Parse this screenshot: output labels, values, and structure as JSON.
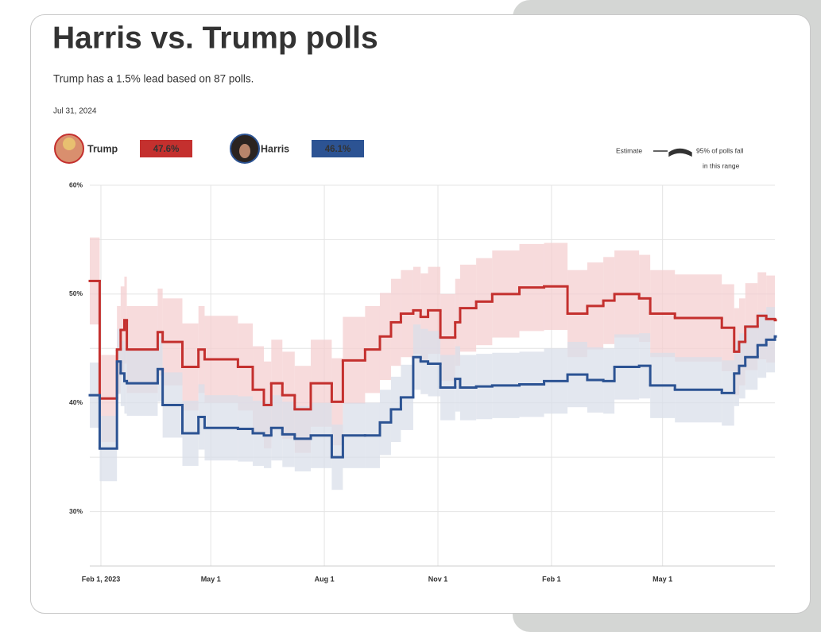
{
  "chart_data": {
    "type": "step-line",
    "title": "Harris vs. Trump polls",
    "subtitle": "Trump has a 1.5% lead based on 87 polls.",
    "date": "Jul 31, 2024",
    "estimate_label": "Estimate",
    "range_label_lines": [
      "95% of polls fall",
      "in this range"
    ],
    "x": [
      "2023-01-23",
      "2023-01-31",
      "2023-02-14",
      "2023-02-17",
      "2023-02-20",
      "2023-02-22",
      "2023-03-19",
      "2023-03-23",
      "2023-04-08",
      "2023-04-21",
      "2023-04-26",
      "2023-05-23",
      "2023-06-04",
      "2023-06-13",
      "2023-06-19",
      "2023-06-28",
      "2023-07-08",
      "2023-07-21",
      "2023-08-07",
      "2023-08-16",
      "2023-09-03",
      "2023-09-15",
      "2023-09-24",
      "2023-10-02",
      "2023-10-12",
      "2023-10-18",
      "2023-10-24",
      "2023-11-03",
      "2023-11-15",
      "2023-11-19",
      "2023-12-02",
      "2023-12-15",
      "2024-01-06",
      "2024-01-26",
      "2024-02-14",
      "2024-03-01",
      "2024-03-14",
      "2024-03-23",
      "2024-04-12",
      "2024-04-21",
      "2024-05-11",
      "2024-06-18",
      "2024-06-28",
      "2024-07-02",
      "2024-07-07",
      "2024-07-17",
      "2024-07-24",
      "2024-07-31"
    ],
    "series": [
      {
        "name": "Trump",
        "color": "#c4302e",
        "band_color": "#f4cfd0",
        "current": 47.6,
        "current_label": "47.6%",
        "values": [
          51.2,
          40.4,
          44.9,
          46.7,
          47.6,
          44.9,
          46.5,
          45.6,
          43.3,
          44.9,
          44.0,
          43.3,
          41.2,
          39.8,
          41.8,
          40.7,
          39.4,
          41.8,
          40.1,
          43.9,
          44.9,
          46.1,
          47.4,
          48.2,
          48.5,
          47.9,
          48.5,
          46.0,
          47.4,
          48.7,
          49.3,
          50.0,
          50.6,
          50.7,
          48.2,
          48.9,
          49.4,
          50.0,
          49.6,
          48.2,
          47.8,
          46.9,
          44.7,
          45.6,
          47.0,
          48.0,
          47.7,
          47.6
        ],
        "lower": [
          47.2,
          36.4,
          40.9,
          42.7,
          43.6,
          40.9,
          42.5,
          41.6,
          39.3,
          40.9,
          40.0,
          39.3,
          37.2,
          35.8,
          37.8,
          36.7,
          35.4,
          37.8,
          36.1,
          39.9,
          40.9,
          42.1,
          43.4,
          44.2,
          44.5,
          43.9,
          44.5,
          42.0,
          43.4,
          44.7,
          45.3,
          46.0,
          46.6,
          46.7,
          44.2,
          44.9,
          45.4,
          46.0,
          45.6,
          44.2,
          43.8,
          42.9,
          40.7,
          41.6,
          43.0,
          44.0,
          43.7,
          43.6
        ],
        "upper": [
          55.2,
          44.4,
          48.9,
          50.7,
          51.6,
          48.9,
          50.5,
          49.6,
          47.3,
          48.9,
          48.0,
          47.3,
          45.2,
          43.8,
          45.8,
          44.7,
          43.4,
          45.8,
          44.1,
          47.9,
          48.9,
          50.1,
          51.4,
          52.2,
          52.5,
          51.9,
          52.5,
          50.0,
          51.4,
          52.7,
          53.3,
          54.0,
          54.6,
          54.7,
          52.2,
          52.9,
          53.4,
          54.0,
          53.6,
          52.2,
          51.8,
          50.9,
          48.7,
          49.6,
          51.0,
          52.0,
          51.7,
          51.6
        ]
      },
      {
        "name": "Harris",
        "color": "#2c5393",
        "band_color": "#d9dfe9",
        "current": 46.1,
        "current_label": "46.1%",
        "values": [
          40.7,
          35.8,
          43.8,
          42.7,
          42.0,
          41.8,
          43.1,
          39.8,
          37.2,
          38.7,
          37.7,
          37.6,
          37.2,
          37.0,
          37.7,
          37.1,
          36.7,
          37.0,
          35.0,
          37.0,
          37.0,
          38.2,
          39.4,
          40.5,
          44.2,
          43.8,
          43.6,
          41.4,
          42.2,
          41.4,
          41.5,
          41.6,
          41.7,
          42.0,
          42.6,
          42.1,
          42.0,
          43.3,
          43.4,
          41.6,
          41.2,
          40.9,
          42.7,
          43.4,
          44.2,
          45.3,
          45.8,
          46.1
        ],
        "lower": [
          37.7,
          32.8,
          40.8,
          39.7,
          39.0,
          38.8,
          40.1,
          36.8,
          34.2,
          35.7,
          34.7,
          34.6,
          34.2,
          34.0,
          34.7,
          34.1,
          33.7,
          34.0,
          32.0,
          34.0,
          34.0,
          35.2,
          36.4,
          37.5,
          41.2,
          40.8,
          40.6,
          38.4,
          39.2,
          38.4,
          38.5,
          38.6,
          38.7,
          39.0,
          39.6,
          39.1,
          39.0,
          40.3,
          40.4,
          38.6,
          38.2,
          37.9,
          39.7,
          40.4,
          41.2,
          42.3,
          42.8,
          43.1
        ],
        "upper": [
          43.7,
          38.8,
          46.8,
          45.7,
          45.0,
          44.8,
          46.1,
          42.8,
          40.2,
          41.7,
          40.7,
          40.6,
          40.2,
          40.0,
          40.7,
          40.1,
          39.7,
          40.0,
          38.0,
          40.0,
          40.0,
          41.2,
          42.4,
          43.5,
          47.2,
          46.8,
          46.6,
          44.4,
          45.2,
          44.4,
          44.5,
          44.6,
          44.7,
          45.0,
          45.6,
          45.1,
          45.0,
          46.3,
          46.4,
          44.6,
          44.2,
          43.9,
          45.7,
          46.4,
          47.2,
          48.3,
          48.8,
          49.1
        ]
      }
    ],
    "xlim": [
      "2023-01-23",
      "2024-07-31"
    ],
    "xticks": [
      {
        "value": "2023-02-01",
        "label": "Feb 1, 2023"
      },
      {
        "value": "2023-05-01",
        "label": "May 1"
      },
      {
        "value": "2023-08-01",
        "label": "Aug 1"
      },
      {
        "value": "2023-11-01",
        "label": "Nov 1"
      },
      {
        "value": "2024-02-01",
        "label": "Feb 1"
      },
      {
        "value": "2024-05-01",
        "label": "May 1"
      }
    ],
    "ylim": [
      25,
      60
    ],
    "yticks": [
      {
        "value": 30,
        "label": "30%"
      },
      {
        "value": 40,
        "label": "40%"
      },
      {
        "value": 50,
        "label": "50%"
      },
      {
        "value": 60,
        "label": "60%"
      }
    ],
    "yminor": [
      35,
      45,
      55
    ],
    "grid": true
  }
}
